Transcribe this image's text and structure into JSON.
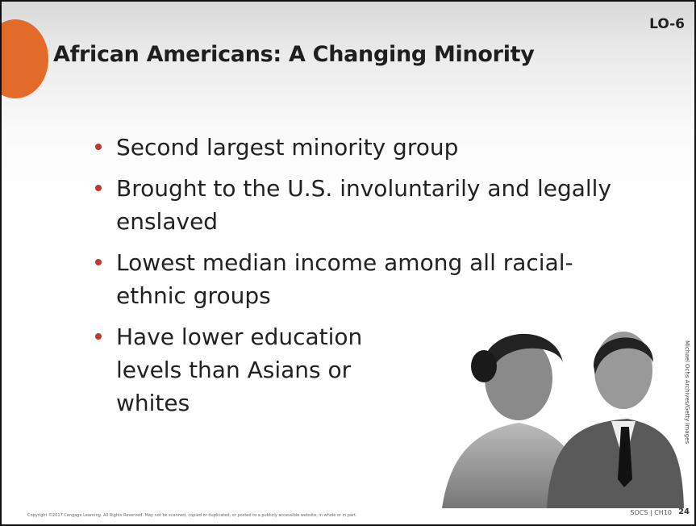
{
  "slide": {
    "badge": "LO-6",
    "title": "African Americans: A Changing Minority",
    "bullets": [
      "Second largest minority group",
      "Brought to the U.S. involuntarily and legally enslaved",
      "Lowest median income among all racial-ethnic groups",
      "Have lower education levels than Asians or whites"
    ],
    "photo_credit": "Michael Ochs Archives/Getty Images",
    "footer": {
      "copyright": "Copyright ©2017 Cengage Learning. All Rights Reserved. May not be scanned, copied or duplicated, or posted to a publicly accessible website, in whole or in part.",
      "course": "SOCS | CH10",
      "page": "24"
    }
  }
}
